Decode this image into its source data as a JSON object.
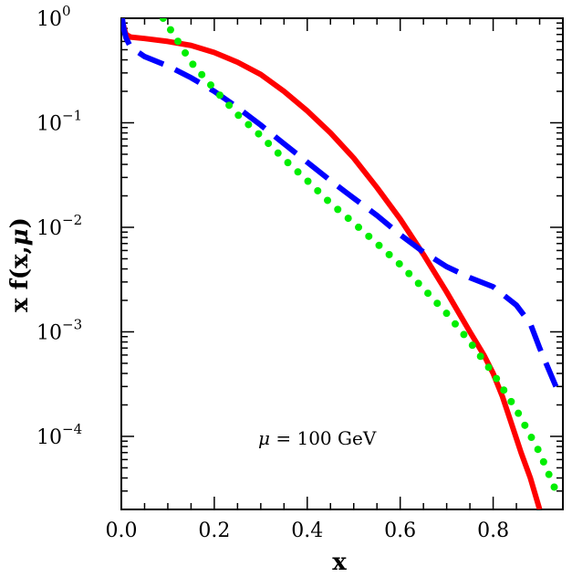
{
  "chart_data": {
    "type": "line",
    "xlabel": "x",
    "ylabel_prefix": "x f(x,",
    "ylabel_mu": "μ",
    "ylabel_suffix": ")",
    "annotation_mu": "μ",
    "annotation_rest": " = 100 GeV",
    "xlim": [
      0.0,
      0.95
    ],
    "ylim": [
      2e-05,
      1.0
    ],
    "yscale": "log",
    "xticks": [
      "0.0",
      "0.2",
      "0.4",
      "0.6",
      "0.8"
    ],
    "xtick_values": [
      0.0,
      0.2,
      0.4,
      0.6,
      0.8
    ],
    "yticks": [
      {
        "base": "10",
        "exp": "0"
      },
      {
        "base": "10",
        "exp": "−1"
      },
      {
        "base": "10",
        "exp": "−2"
      },
      {
        "base": "10",
        "exp": "−3"
      },
      {
        "base": "10",
        "exp": "−4"
      }
    ],
    "ytick_values": [
      1,
      0.1,
      0.01,
      0.001,
      0.0001
    ],
    "grid": false,
    "series": [
      {
        "color": "#ff0000",
        "style": "solid",
        "x": [
          0.002,
          0.006,
          0.01,
          0.02,
          0.05,
          0.1,
          0.15,
          0.2,
          0.25,
          0.3,
          0.35,
          0.4,
          0.45,
          0.5,
          0.55,
          0.6,
          0.65,
          0.7,
          0.75,
          0.78,
          0.8,
          0.82,
          0.84,
          0.86,
          0.88,
          0.9
        ],
        "y": [
          0.95,
          0.8,
          0.7,
          0.66,
          0.64,
          0.6,
          0.55,
          0.47,
          0.38,
          0.29,
          0.2,
          0.13,
          0.08,
          0.046,
          0.024,
          0.012,
          0.0055,
          0.0024,
          0.001,
          0.0006,
          0.0004,
          0.00024,
          0.00013,
          7e-05,
          4e-05,
          2e-05
        ]
      },
      {
        "color": "#0000ff",
        "style": "dashed",
        "x": [
          0.002,
          0.005,
          0.01,
          0.02,
          0.05,
          0.1,
          0.15,
          0.2,
          0.25,
          0.3,
          0.35,
          0.4,
          0.45,
          0.5,
          0.55,
          0.6,
          0.65,
          0.7,
          0.75,
          0.8,
          0.85,
          0.88,
          0.9,
          0.935
        ],
        "y": [
          1.0,
          0.8,
          0.65,
          0.53,
          0.43,
          0.35,
          0.27,
          0.2,
          0.14,
          0.095,
          0.063,
          0.042,
          0.028,
          0.019,
          0.013,
          0.0085,
          0.0058,
          0.0042,
          0.0033,
          0.0027,
          0.0018,
          0.0012,
          0.0007,
          0.0003
        ]
      },
      {
        "color": "#00ee00",
        "style": "dotted",
        "x": [
          0.09,
          0.12,
          0.15,
          0.2,
          0.25,
          0.3,
          0.35,
          0.4,
          0.45,
          0.5,
          0.55,
          0.6,
          0.65,
          0.7,
          0.75,
          0.8,
          0.85,
          0.9,
          0.935
        ],
        "y": [
          1.0,
          0.62,
          0.38,
          0.21,
          0.12,
          0.075,
          0.045,
          0.028,
          0.017,
          0.011,
          0.007,
          0.0044,
          0.0026,
          0.0015,
          0.0008,
          0.0004,
          0.00018,
          7e-05,
          3e-05
        ]
      }
    ]
  }
}
